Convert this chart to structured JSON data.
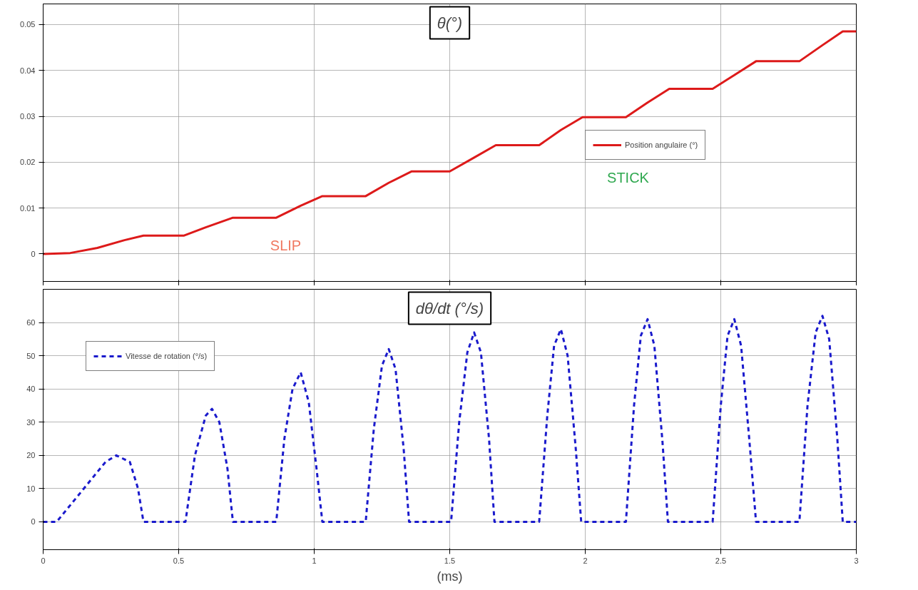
{
  "chart_data": [
    {
      "type": "line",
      "title": "θ(°)",
      "x": [
        0,
        0.1,
        0.2,
        0.3,
        0.37,
        0.52,
        0.6,
        0.7,
        0.86,
        0.95,
        1.03,
        1.19,
        1.275,
        1.36,
        1.5,
        1.59,
        1.67,
        1.83,
        1.91,
        1.99,
        2.15,
        2.23,
        2.31,
        2.47,
        2.55,
        2.63,
        2.79,
        2.875,
        2.95,
        3
      ],
      "series": [
        {
          "name": "Position angulaire (°)",
          "color": "#dd1a1a",
          "values": [
            0,
            0.0002,
            0.0013,
            0.003,
            0.004,
            0.004,
            0.0058,
            0.0079,
            0.0079,
            0.0105,
            0.0126,
            0.0126,
            0.0155,
            0.018,
            0.018,
            0.021,
            0.0237,
            0.0237,
            0.027,
            0.0298,
            0.0298,
            0.033,
            0.036,
            0.036,
            0.039,
            0.042,
            0.042,
            0.0455,
            0.0485,
            0.0485
          ]
        }
      ],
      "xlim": [
        0,
        3
      ],
      "ylim": [
        -0.006,
        0.0545
      ],
      "yticks": [
        0,
        0.01,
        0.02,
        0.03,
        0.04,
        0.05
      ],
      "xticks": [
        0,
        0.5,
        1,
        1.5,
        2,
        2.5,
        3
      ],
      "tick_labels": "y",
      "grid": true,
      "legend": "right",
      "line_style": "solid",
      "annotations": [
        "SLIP",
        "STICK"
      ]
    },
    {
      "type": "line",
      "title": "dθ/dt (°/s)",
      "xlabel": "(ms)",
      "x": [
        0,
        0.05,
        0.1,
        0.17,
        0.23,
        0.27,
        0.32,
        0.35,
        0.37,
        0.525,
        0.56,
        0.6,
        0.623,
        0.65,
        0.68,
        0.7,
        0.86,
        0.89,
        0.92,
        0.95,
        0.98,
        1.01,
        1.03,
        1.19,
        1.22,
        1.25,
        1.275,
        1.3,
        1.33,
        1.35,
        1.505,
        1.535,
        1.565,
        1.59,
        1.615,
        1.645,
        1.665,
        1.83,
        1.86,
        1.885,
        1.91,
        1.935,
        1.965,
        1.985,
        2.15,
        2.18,
        2.205,
        2.23,
        2.255,
        2.285,
        2.305,
        2.47,
        2.5,
        2.525,
        2.55,
        2.575,
        2.605,
        2.63,
        2.79,
        2.82,
        2.85,
        2.875,
        2.9,
        2.93,
        2.95,
        3
      ],
      "series": [
        {
          "name": "Vitesse de rotation (°/s)",
          "color": "#1a1acc",
          "values": [
            0,
            0,
            5,
            12,
            18,
            20,
            18,
            10,
            0,
            0,
            20,
            32,
            34,
            30,
            16,
            0,
            0,
            25,
            40,
            45,
            36,
            15,
            0,
            0,
            28,
            47,
            52,
            46,
            22,
            0,
            0,
            30,
            51,
            57,
            51,
            25,
            0,
            0,
            32,
            53,
            58,
            50,
            22,
            0,
            0,
            35,
            56,
            61,
            53,
            24,
            0,
            0,
            35,
            56,
            61,
            53,
            25,
            0,
            0,
            35,
            57,
            62,
            55,
            25,
            0,
            0
          ]
        }
      ],
      "xlim": [
        0,
        3
      ],
      "ylim": [
        -8.4,
        70
      ],
      "yticks": [
        0,
        10,
        20,
        30,
        40,
        50,
        60
      ],
      "xticks": [
        0,
        0.5,
        1,
        1.5,
        2,
        2.5,
        3
      ],
      "grid": true,
      "legend": "top left",
      "line_style": "dashed"
    }
  ]
}
